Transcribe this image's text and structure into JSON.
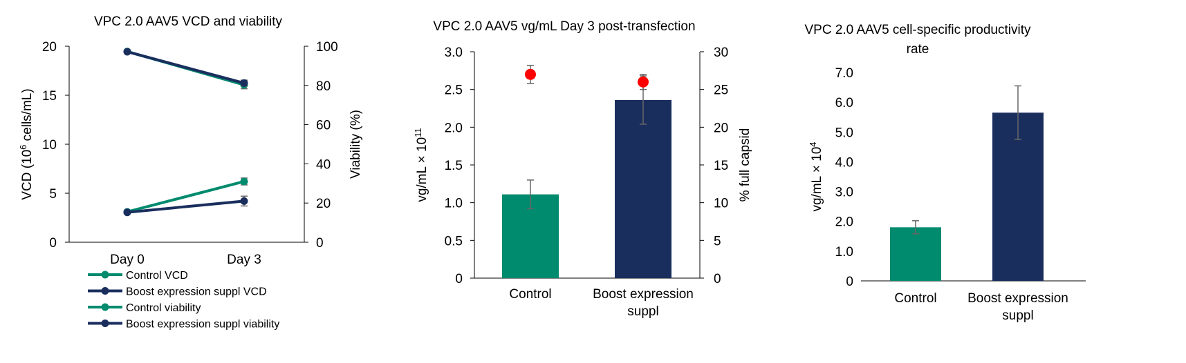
{
  "colors": {
    "control": "#008a6e",
    "boost": "#1a2e5e",
    "capsid_marker": "#ff0000",
    "error_bar": "#666666"
  },
  "chart_data": [
    {
      "type": "line",
      "title": "VPC 2.0 AAV5 VCD and viability",
      "categories": [
        "Day 0",
        "Day 3"
      ],
      "ylabel_html": {
        "pre": "VCD (10",
        "sup": "6",
        "post": " cells/mL)"
      },
      "y2label": "Viability (%)",
      "ylim": [
        0,
        20
      ],
      "yticks": [
        "0",
        "5",
        "10",
        "15",
        "20"
      ],
      "y2lim": [
        0,
        100
      ],
      "y2ticks": [
        "0",
        "20",
        "40",
        "60",
        "80",
        "100"
      ],
      "legend_position": "bottom-left",
      "series": [
        {
          "name": "Control VCD",
          "axis": "left",
          "color": "#008a6e",
          "values": [
            3.1,
            6.2
          ],
          "error": [
            0.1,
            0.35
          ]
        },
        {
          "name": "Boost expression suppl VCD",
          "axis": "left",
          "color": "#1a2e5e",
          "values": [
            3.05,
            4.2
          ],
          "error": [
            0.1,
            0.5
          ]
        },
        {
          "name": "Control viability",
          "axis": "right",
          "color": "#008a6e",
          "values": [
            97.3,
            80.3
          ],
          "error": [
            0.4,
            2.0
          ]
        },
        {
          "name": "Boost expression suppl viability",
          "axis": "right",
          "color": "#1a2e5e",
          "values": [
            97.2,
            81.2
          ],
          "error": [
            0.4,
            1.5
          ]
        }
      ]
    },
    {
      "type": "bar",
      "title": "VPC 2.0 AAV5 vg/mL Day 3 post-transfection",
      "categories": [
        "Control",
        "Boost expression suppl"
      ],
      "ylabel_html": {
        "pre": "vg/mL × 10",
        "sup": "11",
        "post": ""
      },
      "y2label": "% full capsid",
      "ylim": [
        0,
        3.0
      ],
      "yticks": [
        "0",
        "0.5",
        "1.0",
        "1.5",
        "2.0",
        "2.5",
        "3.0"
      ],
      "y2lim": [
        0,
        30
      ],
      "y2ticks": [
        "0",
        "5",
        "10",
        "15",
        "20",
        "25",
        "30"
      ],
      "series": [
        {
          "name": "vg/mL",
          "axis": "left",
          "values": [
            1.11,
            2.36
          ],
          "error": [
            0.19,
            0.32
          ],
          "colors": [
            "#008a6e",
            "#1a2e5e"
          ]
        },
        {
          "name": "% full capsid",
          "axis": "right",
          "values": [
            27.0,
            26.0
          ],
          "error": [
            1.2,
            1.0
          ],
          "color": "#ff0000"
        }
      ]
    },
    {
      "type": "bar",
      "title_lines": [
        "VPC 2.0 AAV5 cell-specific productivity",
        "rate"
      ],
      "categories": [
        "Control",
        "Boost expression suppl"
      ],
      "ylabel_html": {
        "pre": "vg/mL × 10",
        "sup": "4",
        "post": ""
      },
      "ylim": [
        0,
        7.0
      ],
      "yticks": [
        "0",
        "1.0",
        "2.0",
        "3.0",
        "4.0",
        "5.0",
        "6.0",
        "7.0"
      ],
      "series": [
        {
          "name": "productivity",
          "axis": "left",
          "values": [
            1.8,
            5.65
          ],
          "error": [
            0.22,
            0.9
          ],
          "colors": [
            "#008a6e",
            "#1a2e5e"
          ]
        }
      ]
    }
  ]
}
